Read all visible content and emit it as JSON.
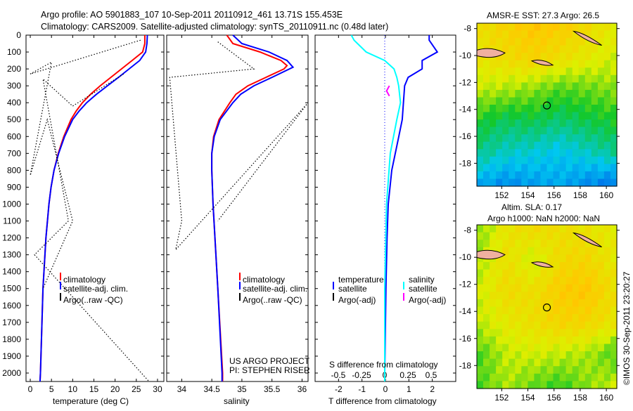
{
  "title_line1": "Argo profile: AO 5901883_107 10-Sep-2011 20110912_461 13.71S 155.453E",
  "title_line2": "Climatology: CARS2009. Satellite-adjusted climatology: synTS_20110911.nc (0.48d later)",
  "credit": "©IMOS 30-Sep-2011 23:20:27",
  "colors": {
    "clim": "#ff0000",
    "sat": "#0000ff",
    "argo": "#000000",
    "sat_s": "#00ffff",
    "argo_s": "#ff00ff"
  },
  "chart_data": [
    {
      "type": "line",
      "id": "temperature",
      "xlabel": "temperature (deg C)",
      "xlim": [
        -1,
        31.5
      ],
      "ylim": [
        0,
        2050
      ],
      "xticks": [
        "0",
        "5",
        "10",
        "15",
        "20",
        "25",
        "30"
      ],
      "xtick_values": [
        0,
        5,
        10,
        15,
        20,
        25,
        30
      ],
      "yticks": [
        "0",
        "100",
        "200",
        "300",
        "400",
        "500",
        "600",
        "700",
        "800",
        "900",
        "1000",
        "1100",
        "1200",
        "1300",
        "1400",
        "1500",
        "1600",
        "1700",
        "1800",
        "1900",
        "2000"
      ],
      "legend": [
        "climatology",
        "satellite-adj. clim.",
        "Argo(..raw -QC)"
      ],
      "series": [
        {
          "name": "climatology",
          "color": "clim",
          "depth": [
            0,
            50,
            100,
            150,
            200,
            250,
            300,
            350,
            400,
            450,
            500,
            600,
            700,
            800,
            900,
            1000,
            1200,
            1500,
            2000,
            2050
          ],
          "values": [
            27,
            27,
            26.5,
            24,
            21.5,
            19,
            16.5,
            14.2,
            12.3,
            10.8,
            9.6,
            7.9,
            6.6,
            5.6,
            4.9,
            4.4,
            3.7,
            3,
            2.4,
            2.3
          ]
        },
        {
          "name": "satellite-adj. clim.",
          "color": "sat",
          "depth": [
            0,
            50,
            100,
            150,
            200,
            250,
            300,
            350,
            400,
            450,
            500,
            600,
            700,
            800,
            900,
            1000,
            1200,
            1500,
            2000,
            2050
          ],
          "values": [
            27.6,
            27.5,
            27.2,
            25.8,
            23.3,
            20.8,
            18.2,
            15.6,
            13.3,
            11.5,
            10,
            8.1,
            6.7,
            5.6,
            4.9,
            4.4,
            3.7,
            3,
            2.4,
            2.3
          ]
        },
        {
          "name": "Argo(..raw -QC)",
          "color": "argo",
          "dotted": true,
          "depth": [
            30,
            230,
            160,
            830,
            500,
            1100,
            1500
          ],
          "values": [
            26,
            0,
            5,
            0,
            4,
            10,
            3
          ]
        },
        {
          "name": "Argo(..raw -QC) b",
          "color": "argo",
          "dotted": true,
          "depth": [
            230,
            420,
            260,
            1100,
            1300,
            2050
          ],
          "values": [
            22,
            10,
            3,
            9,
            1,
            28
          ]
        }
      ]
    },
    {
      "type": "line",
      "id": "salinity",
      "xlabel": "salinity",
      "xlim": [
        33.75,
        36.1
      ],
      "ylim": [
        0,
        2050
      ],
      "xticks": [
        "34",
        "34.5",
        "35",
        "35.5",
        "36"
      ],
      "xtick_values": [
        34,
        34.5,
        35,
        35.5,
        36
      ],
      "legend": [
        "climatology",
        "satellite-adj. clim.",
        "Argo(..raw -QC)"
      ],
      "annotation": [
        "US ARGO PROJECT",
        "PI: STEPHEN RISER"
      ],
      "series": [
        {
          "name": "climatology",
          "color": "clim",
          "depth": [
            0,
            50,
            100,
            150,
            180,
            200,
            250,
            300,
            350,
            400,
            500,
            600,
            700,
            800,
            1000,
            1500,
            2000,
            2050
          ],
          "values": [
            34.75,
            34.85,
            35.3,
            35.65,
            35.75,
            35.7,
            35.4,
            35.1,
            34.9,
            34.8,
            34.62,
            34.53,
            34.5,
            34.5,
            34.52,
            34.6,
            34.68,
            34.68
          ]
        },
        {
          "name": "satellite-adj. clim.",
          "color": "sat",
          "depth": [
            0,
            50,
            100,
            150,
            190,
            250,
            300,
            350,
            400,
            500,
            600,
            700,
            800,
            1000,
            1500,
            2000,
            2050
          ],
          "values": [
            34.85,
            35.0,
            35.45,
            35.75,
            35.85,
            35.5,
            35.2,
            34.98,
            34.85,
            34.64,
            34.54,
            34.5,
            34.5,
            34.52,
            34.6,
            34.67,
            34.67
          ]
        },
        {
          "name": "Argo(..raw -QC)",
          "color": "argo",
          "dotted": true,
          "depth": [
            40,
            200,
            250,
            1100,
            1270,
            400,
            1100
          ],
          "values": [
            34.6,
            35.2,
            33.8,
            34.0,
            33.9,
            36.1,
            34.6
          ]
        }
      ]
    },
    {
      "type": "line",
      "id": "difference",
      "xlabel": "T difference from climatology",
      "xlabel2": "S difference from climatology",
      "xlim": [
        -3,
        3
      ],
      "ylim": [
        0,
        2050
      ],
      "xticks": [
        "-2",
        "-1",
        "0",
        "1",
        "2"
      ],
      "xtick_values": [
        -2,
        -1,
        0,
        1,
        2
      ],
      "xticks2": [
        "-0.5",
        "-0.25",
        "0",
        "0.25",
        "0.5"
      ],
      "xtick_values2": [
        -0.5,
        -0.25,
        0,
        0.25,
        0.5
      ],
      "legend_t": [
        "temperature",
        "satellite",
        "Argo(-adj)"
      ],
      "legend_s": [
        "salinity",
        "satellite",
        "Argo(-adj)"
      ],
      "series": [
        {
          "name": "T satellite",
          "color": "sat",
          "scale": "T",
          "depth": [
            0,
            30,
            100,
            150,
            200,
            250,
            300,
            400,
            500,
            600,
            800,
            1000,
            1200,
            1500,
            2000,
            2050
          ],
          "values": [
            1.9,
            1.9,
            2.25,
            1.6,
            1.6,
            1.0,
            0.85,
            0.8,
            0.75,
            0.6,
            0.3,
            0.15,
            0.1,
            0.05,
            0,
            0
          ]
        },
        {
          "name": "S satellite",
          "color": "sat_s",
          "scale": "S",
          "depth": [
            0,
            30,
            100,
            150,
            200,
            250,
            300,
            400,
            500,
            700,
            1000,
            1500,
            2000,
            2050
          ],
          "values": [
            -0.36,
            -0.33,
            -0.2,
            0,
            0.1,
            0.13,
            0.15,
            0.17,
            0.13,
            0.06,
            0.02,
            0.0,
            0.0,
            0.0
          ]
        },
        {
          "name": "S Argo(-adj)",
          "color": "argo_s",
          "scale": "S",
          "depth": [
            300,
            330,
            360
          ],
          "values": [
            0.05,
            0.02,
            0.05
          ]
        }
      ]
    },
    {
      "type": "heatmap",
      "id": "sst_map",
      "title": "AMSR-E SST: 27.3 Argo: 26.5",
      "lon_ticks": [
        "152",
        "154",
        "156",
        "158",
        "160"
      ],
      "lon_values": [
        152,
        154,
        156,
        158,
        160
      ],
      "lat_ticks": [
        "-8",
        "-10",
        "-12",
        "-14",
        "-16",
        "-18"
      ],
      "lat_values": [
        -8,
        -10,
        -12,
        -14,
        -16,
        -18
      ],
      "lon_range": [
        150.1,
        160.8
      ],
      "lat_range": [
        -19.7,
        -7.6
      ],
      "argo_position": [
        155.453,
        -13.71
      ],
      "grid": [
        [
          0.7,
          0.75,
          0.8,
          0.78,
          0.72,
          0.65
        ],
        [
          0.68,
          0.72,
          0.75,
          0.7,
          0.66,
          0.62
        ],
        [
          0.6,
          0.58,
          0.55,
          0.5,
          0.52,
          0.55
        ],
        [
          0.45,
          0.4,
          0.42,
          0.38,
          0.42,
          0.45
        ],
        [
          0.35,
          0.3,
          0.28,
          0.25,
          0.3,
          0.35
        ],
        [
          0.2,
          0.15,
          0.18,
          0.2,
          0.15,
          0.12
        ]
      ]
    },
    {
      "type": "heatmap",
      "id": "sla_map",
      "title": "Altim. SLA: 0.17",
      "subtitle": "Argo h1000: NaN h2000: NaN",
      "lon_ticks": [
        "152",
        "154",
        "156",
        "158",
        "160"
      ],
      "lon_values": [
        152,
        154,
        156,
        158,
        160
      ],
      "lat_ticks": [
        "-8",
        "-10",
        "-12",
        "-14",
        "-16",
        "-18"
      ],
      "lat_values": [
        -8,
        -10,
        -12,
        -14,
        -16,
        -18
      ],
      "lon_range": [
        150.1,
        160.8
      ],
      "lat_range": [
        -19.7,
        -7.6
      ],
      "argo_position": [
        155.453,
        -13.71
      ],
      "grid": [
        [
          0.55,
          0.68,
          0.72,
          0.7,
          0.68,
          0.65
        ],
        [
          0.58,
          0.7,
          0.6,
          0.72,
          0.74,
          0.66
        ],
        [
          0.62,
          0.72,
          0.7,
          0.78,
          0.8,
          0.7
        ],
        [
          0.6,
          0.66,
          0.7,
          0.75,
          0.74,
          0.68
        ],
        [
          0.5,
          0.6,
          0.62,
          0.6,
          0.58,
          0.5
        ],
        [
          0.5,
          0.58,
          0.52,
          0.48,
          0.55,
          0.6
        ]
      ]
    }
  ]
}
